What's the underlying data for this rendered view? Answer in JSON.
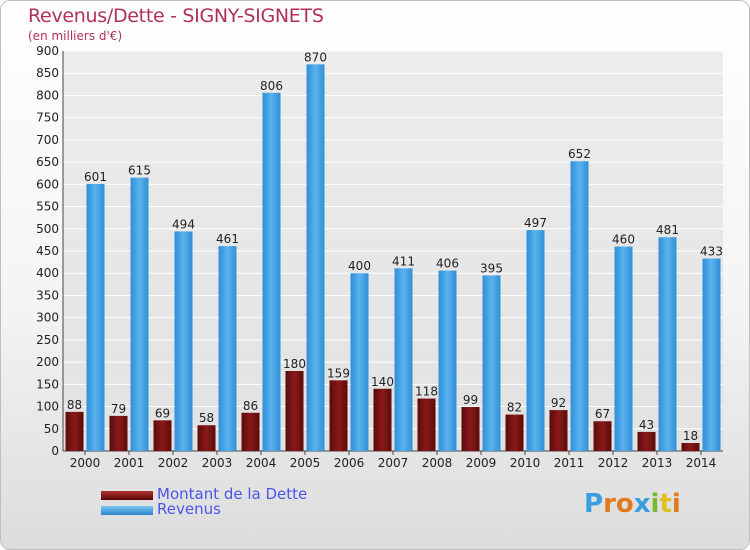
{
  "chart_data": {
    "type": "bar",
    "title": "Revenus/Dette - SIGNY-SIGNETS",
    "subtitle": "(en milliers d'€)",
    "categories": [
      "2000",
      "2001",
      "2002",
      "2003",
      "2004",
      "2005",
      "2006",
      "2007",
      "2008",
      "2009",
      "2010",
      "2011",
      "2012",
      "2013",
      "2014"
    ],
    "series": [
      {
        "name": "Montant de la Dette",
        "color": "#7a1010",
        "values": [
          88,
          79,
          69,
          58,
          86,
          180,
          159,
          140,
          118,
          99,
          82,
          92,
          67,
          43,
          18
        ]
      },
      {
        "name": "Revenus",
        "color": "#3a9ee0",
        "values": [
          601,
          615,
          494,
          461,
          806,
          870,
          400,
          411,
          406,
          395,
          497,
          652,
          460,
          481,
          433
        ]
      }
    ],
    "ylim": [
      0,
      900
    ],
    "yticks": [
      "0",
      "50",
      "100",
      "150",
      "200",
      "250",
      "300",
      "350",
      "400",
      "450",
      "500",
      "550",
      "600",
      "650",
      "700",
      "750",
      "800",
      "850",
      "900"
    ],
    "grid": true,
    "legend_position": "bottom-left"
  },
  "logo": {
    "text": "Proxiti",
    "colors": [
      "#3a9ee0",
      "#e07a1e",
      "#e07a1e",
      "#3a9ee0",
      "#7ab82e",
      "#e0c020",
      "#e07a1e"
    ]
  }
}
